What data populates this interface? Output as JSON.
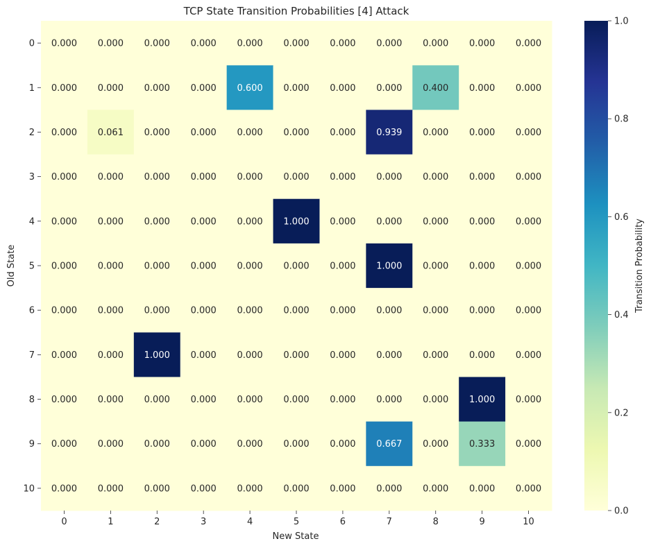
{
  "chart_data": {
    "type": "heatmap",
    "title": "TCP State Transition Probabilities [4] Attack",
    "xlabel": "New State",
    "ylabel": "Old State",
    "x_categories": [
      "0",
      "1",
      "2",
      "3",
      "4",
      "5",
      "6",
      "7",
      "8",
      "9",
      "10"
    ],
    "y_categories": [
      "0",
      "1",
      "2",
      "3",
      "4",
      "5",
      "6",
      "7",
      "8",
      "9",
      "10"
    ],
    "values": [
      [
        0,
        0,
        0,
        0,
        0,
        0,
        0,
        0,
        0,
        0,
        0
      ],
      [
        0,
        0,
        0,
        0,
        0.6,
        0,
        0,
        0,
        0.4,
        0,
        0
      ],
      [
        0,
        0.061,
        0,
        0,
        0,
        0,
        0,
        0.939,
        0,
        0,
        0
      ],
      [
        0,
        0,
        0,
        0,
        0,
        0,
        0,
        0,
        0,
        0,
        0
      ],
      [
        0,
        0,
        0,
        0,
        0,
        1,
        0,
        0,
        0,
        0,
        0
      ],
      [
        0,
        0,
        0,
        0,
        0,
        0,
        0,
        1,
        0,
        0,
        0
      ],
      [
        0,
        0,
        0,
        0,
        0,
        0,
        0,
        0,
        0,
        0,
        0
      ],
      [
        0,
        0,
        1,
        0,
        0,
        0,
        0,
        0,
        0,
        0,
        0
      ],
      [
        0,
        0,
        0,
        0,
        0,
        0,
        0,
        0,
        0,
        1,
        0
      ],
      [
        0,
        0,
        0,
        0,
        0,
        0,
        0,
        0.667,
        0,
        0.333,
        0
      ],
      [
        0,
        0,
        0,
        0,
        0,
        0,
        0,
        0,
        0,
        0,
        0
      ]
    ],
    "value_format_decimals": 3,
    "colormap": "YlGnBu",
    "colorbar": {
      "label": "Transition Probability",
      "range": [
        0,
        1
      ],
      "ticks": [
        "0.0",
        "0.2",
        "0.4",
        "0.6",
        "0.8",
        "1.0"
      ]
    }
  }
}
